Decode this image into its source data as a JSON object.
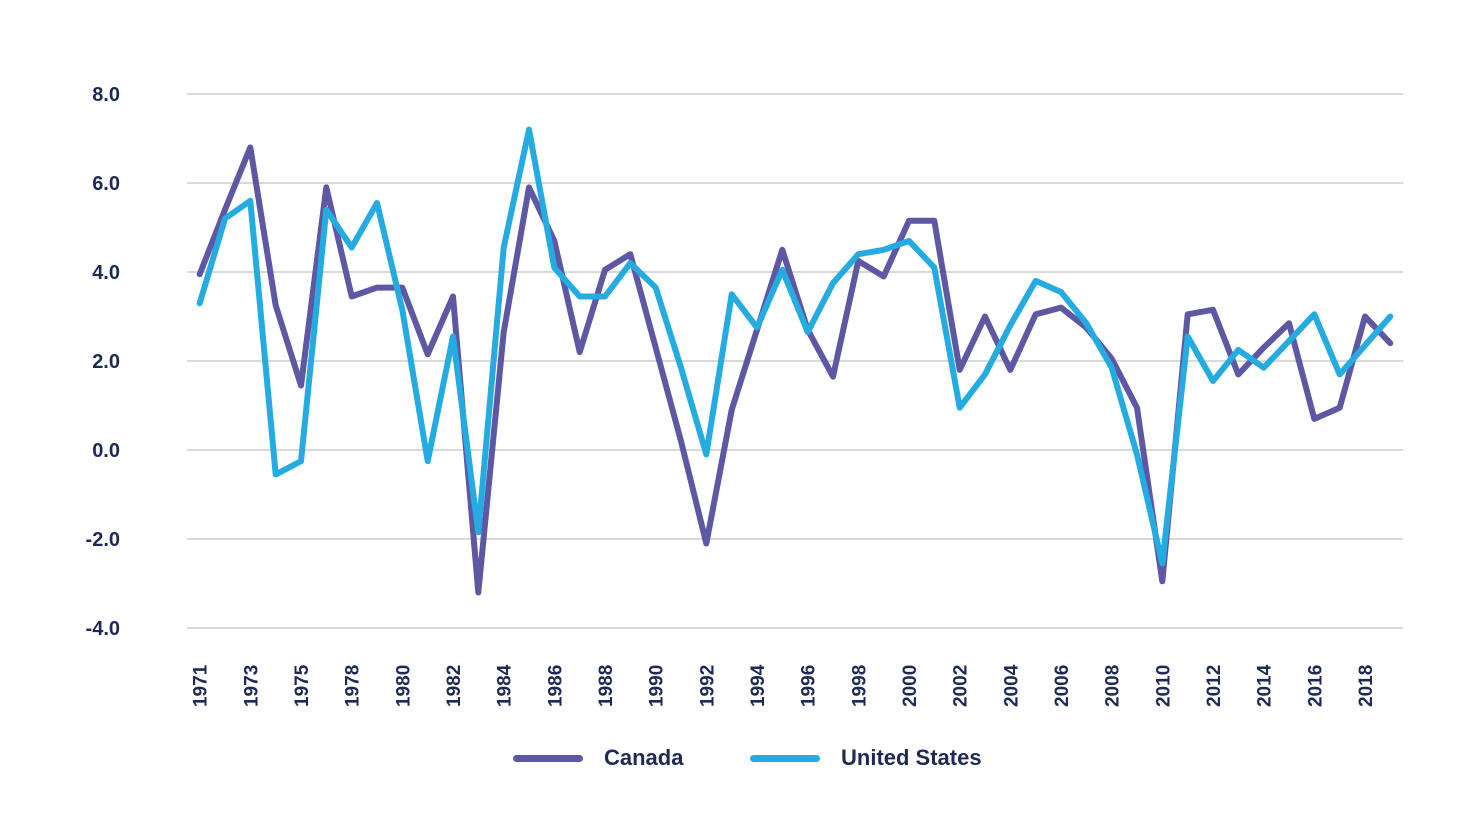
{
  "chart_data": {
    "type": "line",
    "title": "",
    "xlabel": "",
    "ylabel": "",
    "ylim": [
      -4.0,
      8.0
    ],
    "yticks": [
      "-4.0",
      "-2.0",
      "0.0",
      "2.0",
      "4.0",
      "6.0",
      "8.0"
    ],
    "ytick_values": [
      -4,
      -2,
      0,
      2,
      4,
      6,
      8
    ],
    "grid": true,
    "legend_position": "bottom-center",
    "categories": [
      "1971",
      "1972",
      "1973",
      "1974",
      "1975",
      "1977",
      "1978",
      "1979",
      "1980",
      "1981",
      "1982",
      "1983",
      "1984",
      "1985",
      "1986",
      "1987",
      "1988",
      "1989",
      "1990",
      "1991",
      "1992",
      "1993",
      "1994",
      "1995",
      "1996",
      "1997",
      "1998",
      "1999",
      "2000",
      "2001",
      "2002",
      "2003",
      "2004",
      "2005",
      "2006",
      "2007",
      "2008",
      "2009",
      "2010",
      "2011",
      "2012",
      "2013",
      "2014",
      "2015",
      "2016",
      "2017",
      "2018",
      "2019"
    ],
    "xtick_labels": [
      "1971",
      "1973",
      "1975",
      "1978",
      "1980",
      "1982",
      "1984",
      "1986",
      "1988",
      "1990",
      "1992",
      "1994",
      "1996",
      "1998",
      "2000",
      "2002",
      "2004",
      "2006",
      "2008",
      "2010",
      "2012",
      "2014",
      "2016",
      "2018"
    ],
    "series": [
      {
        "name": "Canada",
        "color": "#5e57a3",
        "values": [
          3.95,
          5.4,
          6.8,
          3.25,
          1.45,
          5.9,
          3.45,
          3.65,
          3.65,
          2.15,
          3.45,
          -3.2,
          2.65,
          5.9,
          4.7,
          2.2,
          4.05,
          4.4,
          2.3,
          0.2,
          -2.1,
          0.9,
          2.7,
          4.5,
          2.7,
          1.65,
          4.25,
          3.9,
          5.15,
          5.15,
          1.8,
          3.0,
          1.8,
          3.05,
          3.2,
          2.75,
          2.05,
          0.95,
          -2.95,
          3.05,
          3.15,
          1.7,
          2.3,
          2.85,
          0.7,
          0.95,
          3.0,
          2.4
        ]
      },
      {
        "name": "United States",
        "color": "#24ace2",
        "values": [
          3.3,
          5.2,
          5.6,
          -0.55,
          -0.25,
          5.4,
          4.55,
          5.55,
          3.15,
          -0.25,
          2.55,
          -1.85,
          4.55,
          7.2,
          4.1,
          3.45,
          3.45,
          4.2,
          3.65,
          1.85,
          -0.1,
          3.5,
          2.75,
          4.05,
          2.65,
          3.75,
          4.4,
          4.5,
          4.7,
          4.1,
          0.95,
          1.7,
          2.8,
          3.8,
          3.55,
          2.85,
          1.85,
          -0.1,
          -2.55,
          2.55,
          1.55,
          2.25,
          1.85,
          2.45,
          3.05,
          1.7,
          2.35,
          3.0
        ]
      }
    ]
  },
  "legend": {
    "items": [
      {
        "label": "Canada",
        "color": "#5e57a3"
      },
      {
        "label": "United States",
        "color": "#24ace2"
      }
    ]
  }
}
